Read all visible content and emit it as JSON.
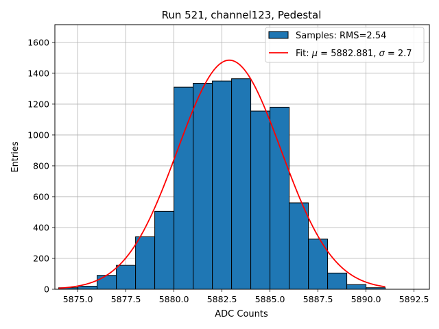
{
  "chart_data": {
    "type": "histogram",
    "title": "Run 521, channel123, Pedestal",
    "xlabel": "ADC Counts",
    "ylabel": "Entries",
    "xlim": [
      5873.8,
      5893.3
    ],
    "ylim": [
      0,
      1715
    ],
    "grid": true,
    "legend_position": "top-right",
    "xticks": [
      5875.0,
      5877.5,
      5880.0,
      5882.5,
      5885.0,
      5887.5,
      5890.0,
      5892.5
    ],
    "xtick_labels": [
      "5875.0",
      "5877.5",
      "5880.0",
      "5882.5",
      "5885.0",
      "5887.5",
      "5890.0",
      "5892.5"
    ],
    "yticks": [
      0,
      200,
      400,
      600,
      800,
      1000,
      1200,
      1400,
      1600
    ],
    "ytick_labels": [
      "0",
      "200",
      "400",
      "600",
      "800",
      "1000",
      "1200",
      "1400",
      "1600"
    ],
    "series": [
      {
        "name": "Samples: RMS=2.54",
        "kind": "bars",
        "color": "#1f77b4",
        "edgecolor": "#000000",
        "bin_edges": [
          5874.0,
          5875.0,
          5876.0,
          5877.0,
          5878.0,
          5879.0,
          5880.0,
          5881.0,
          5882.0,
          5883.0,
          5884.0,
          5885.0,
          5886.0,
          5887.0,
          5888.0,
          5889.0,
          5890.0,
          5891.0
        ],
        "counts": [
          10,
          20,
          90,
          155,
          340,
          505,
          1310,
          1335,
          1350,
          1365,
          1155,
          1180,
          560,
          325,
          105,
          30,
          10
        ]
      },
      {
        "name": "Fit",
        "kind": "line",
        "color": "#ff0000",
        "mu": 5882.881,
        "sigma": 2.7,
        "amplitude": 1485,
        "x_range": [
          5874.0,
          5891.0
        ]
      }
    ],
    "legend": [
      {
        "series": 0,
        "label": "Samples: RMS=2.54"
      },
      {
        "series": 1,
        "label_prefix": "Fit: ",
        "mu_symbol": "μ",
        "mu_text": " = 5882.881, ",
        "sigma_symbol": "σ",
        "sigma_text": " = 2.7"
      }
    ]
  }
}
